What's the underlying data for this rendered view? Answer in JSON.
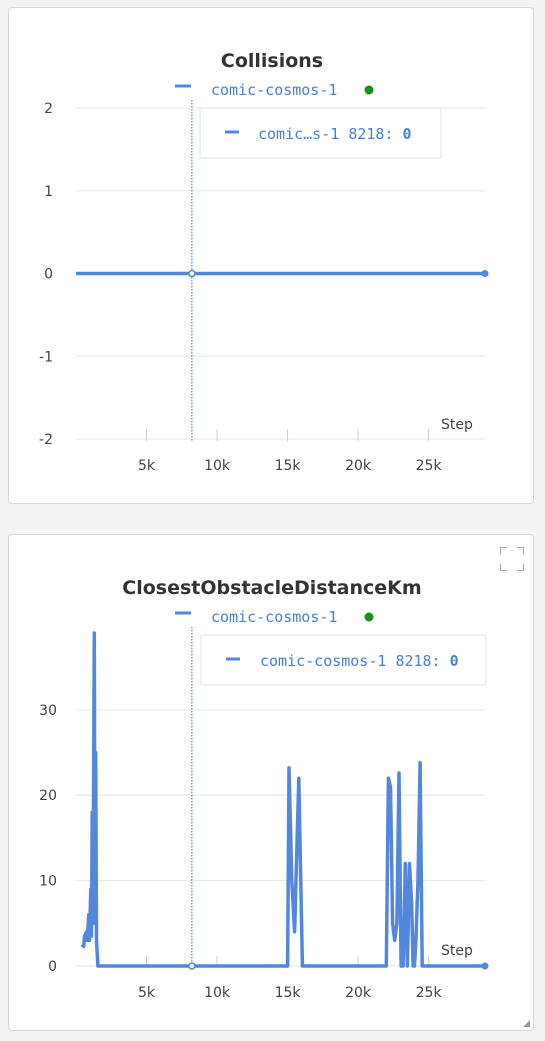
{
  "colors": {
    "series": "#5387dd",
    "legend_text": "#4a7fd6",
    "status_dot": "#1a8f1a",
    "grid": "#e6e6e6",
    "axis_text": "#444444"
  },
  "panels": [
    {
      "title": "Collisions",
      "legend": {
        "run_name": "comic-cosmos-1",
        "status": "running"
      },
      "tooltip": {
        "run_label": "comic…s-1",
        "step": "8218:",
        "value": "0"
      },
      "x_axis_label": "Step",
      "icons": []
    },
    {
      "title": "ClosestObstacleDistanceKm",
      "legend": {
        "run_name": "comic-cosmos-1",
        "status": "running"
      },
      "tooltip": {
        "run_label": "comic-cosmos-1",
        "step": "8218:",
        "value": "0"
      },
      "x_axis_label": "Step",
      "icons": [
        "fullscreen-icon",
        "resize-handle-icon"
      ]
    }
  ],
  "chart_data": [
    {
      "type": "line",
      "title": "Collisions",
      "xlabel": "Step",
      "ylabel": "",
      "xlim": [
        0,
        29000
      ],
      "ylim": [
        -2,
        2
      ],
      "xticks": [
        5000,
        10000,
        15000,
        20000,
        25000
      ],
      "xtick_labels": [
        "5k",
        "10k",
        "15k",
        "20k",
        "25k"
      ],
      "yticks": [
        -2,
        -1,
        0,
        1,
        2
      ],
      "ytick_labels": [
        "-2",
        "-1",
        "0",
        "1",
        "2"
      ],
      "grid": true,
      "legend_position": "top-center",
      "hover_step": 8218,
      "series": [
        {
          "name": "comic-cosmos-1",
          "x": [
            0,
            29000
          ],
          "y": [
            0,
            0
          ]
        }
      ]
    },
    {
      "type": "line",
      "title": "ClosestObstacleDistanceKm",
      "xlabel": "Step",
      "ylabel": "",
      "xlim": [
        0,
        29000
      ],
      "ylim": [
        0,
        39
      ],
      "xticks": [
        5000,
        10000,
        15000,
        20000,
        25000
      ],
      "xtick_labels": [
        "5k",
        "10k",
        "15k",
        "20k",
        "25k"
      ],
      "yticks": [
        0,
        10,
        20,
        30
      ],
      "ytick_labels": [
        "0",
        "10",
        "20",
        "30"
      ],
      "grid": true,
      "legend_position": "top-center",
      "hover_step": 8218,
      "series": [
        {
          "name": "comic-cosmos-1",
          "x": [
            400,
            550,
            600,
            750,
            800,
            900,
            950,
            1050,
            1100,
            1150,
            1200,
            1300,
            1350,
            1400,
            1450,
            1550,
            1600,
            1650,
            1700,
            1750,
            1800,
            1850,
            1950,
            2000,
            2050,
            2100,
            2200,
            3000,
            5000,
            8218,
            10000,
            15000,
            15100,
            15300,
            15500,
            15800,
            16050,
            16200,
            16300,
            16400,
            18000,
            20000,
            22000,
            22150,
            22300,
            22450,
            22600,
            22750,
            22900,
            23050,
            23200,
            23350,
            23500,
            23650,
            23800,
            23900,
            24000,
            24100,
            24250,
            24400,
            24550,
            24700,
            24850,
            24900,
            25000,
            26000,
            27000,
            28000,
            29000
          ],
          "y": [
            2.5,
            2.3,
            3.5,
            4,
            3,
            6,
            3,
            9,
            3.5,
            18,
            5,
            39,
            5,
            25,
            3,
            0,
            0,
            0,
            0,
            0,
            0,
            0,
            0,
            0,
            0,
            0,
            0,
            0,
            0,
            0,
            0,
            0,
            23.2,
            10,
            4,
            22,
            0,
            0,
            0,
            0,
            0,
            0,
            0,
            22,
            21,
            5,
            3,
            5,
            22.6,
            0,
            0,
            12,
            0,
            12,
            7,
            0,
            0,
            3,
            10,
            23.8,
            0,
            0,
            0,
            0,
            0,
            0,
            0,
            0,
            0
          ]
        }
      ]
    }
  ]
}
